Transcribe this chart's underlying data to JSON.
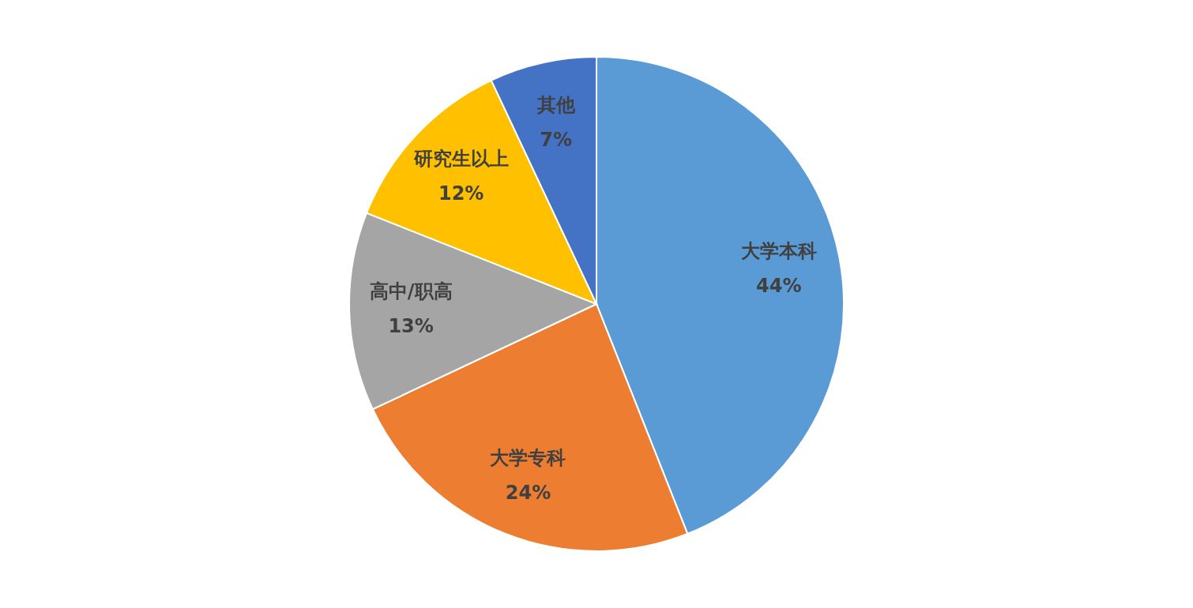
{
  "chart_data": {
    "type": "pie",
    "categories": [
      "大学本科",
      "大学专科",
      "高中/职高",
      "研究生以上",
      "其他"
    ],
    "values": [
      44,
      24,
      13,
      12,
      7
    ],
    "value_labels": [
      "44%",
      "24%",
      "13%",
      "12%",
      "7%"
    ],
    "colors": [
      "#5b9bd5",
      "#ed7d31",
      "#a5a5a5",
      "#ffc000",
      "#4472c4"
    ],
    "legend": false
  }
}
